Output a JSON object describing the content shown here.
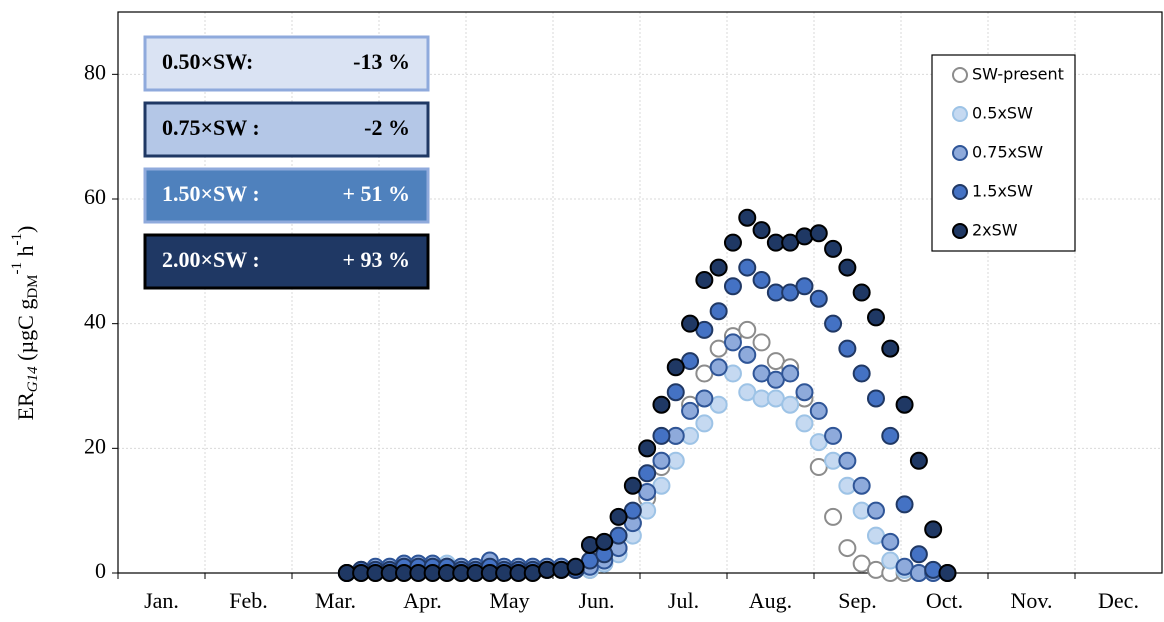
{
  "chart_data": {
    "type": "scatter",
    "y_label": [
      "ER",
      "G14",
      " (µgC g",
      "DM",
      "-1",
      " h",
      "-1",
      ")"
    ],
    "categories": [
      "Jan.",
      "Feb.",
      "Mar.",
      "Apr.",
      "May",
      "Jun.",
      "Jul.",
      "Aug.",
      "Sep.",
      "Oct.",
      "Nov.",
      "Dec."
    ],
    "xlim": [
      0,
      365
    ],
    "ylim": [
      0,
      90
    ],
    "yticks": [
      0,
      20,
      40,
      60,
      80
    ],
    "grid": true,
    "legend": "top-right",
    "x": [
      60,
      65,
      70,
      75,
      80,
      85,
      90,
      95,
      100,
      105,
      110,
      115,
      120,
      125,
      130,
      135,
      140,
      145,
      150,
      155,
      160,
      165,
      170,
      175,
      180,
      185,
      190,
      195,
      200,
      205,
      210,
      215,
      220,
      225,
      230,
      235,
      240,
      245,
      250,
      255,
      260,
      265,
      270,
      275,
      280,
      285,
      290
    ],
    "series": [
      {
        "name": "SW-present",
        "color": "#ffffff",
        "stroke": "#8c8c8c",
        "values": [
          null,
          null,
          null,
          null,
          0,
          0,
          0,
          0.5,
          0.5,
          0.5,
          0.5,
          0.5,
          0.5,
          0.5,
          0.5,
          0.5,
          0.5,
          0.5,
          0.5,
          0.5,
          0.5,
          0.5,
          1.5,
          4,
          8,
          12,
          17,
          22,
          27,
          32,
          36,
          38,
          39,
          37,
          34,
          33,
          28,
          17,
          9,
          4,
          1.5,
          0.5,
          0,
          0,
          0,
          null,
          null
        ]
      },
      {
        "name": "0.5xSW",
        "color": "#c5d9f1",
        "stroke": "#9dc3e6",
        "values": [
          null,
          null,
          null,
          null,
          0,
          0.5,
          0.5,
          1,
          1.5,
          1.5,
          1.5,
          1.5,
          1,
          1,
          1.5,
          1,
          1,
          1,
          1,
          1,
          0.5,
          0.5,
          1.5,
          3,
          6,
          10,
          14,
          18,
          22,
          24,
          27,
          32,
          29,
          28,
          28,
          27,
          24,
          21,
          18,
          14,
          10,
          6,
          2,
          0.5,
          0,
          null,
          null
        ]
      },
      {
        "name": "0.75xSW",
        "color": "#8eaadb",
        "stroke": "#2f5597",
        "values": [
          null,
          null,
          null,
          null,
          0,
          0.5,
          1,
          1,
          1.5,
          1.5,
          1.5,
          1,
          1,
          1,
          2,
          1,
          1,
          1,
          1,
          1,
          0.5,
          1,
          2,
          4,
          8,
          13,
          18,
          22,
          26,
          28,
          33,
          37,
          35,
          32,
          31,
          32,
          29,
          26,
          22,
          18,
          14,
          10,
          5,
          1,
          0,
          0,
          null
        ]
      },
      {
        "name": "1.5xSW",
        "color": "#4472c4",
        "stroke": "#203864",
        "values": [
          null,
          null,
          null,
          null,
          0,
          0.5,
          0.5,
          0.5,
          1,
          1,
          1,
          1,
          0.5,
          0.5,
          1,
          0.5,
          0.5,
          0.5,
          0.5,
          0.5,
          0.5,
          2,
          3,
          6,
          10,
          16,
          22,
          29,
          34,
          39,
          42,
          46,
          49,
          47,
          45,
          45,
          46,
          44,
          40,
          36,
          32,
          28,
          22,
          11,
          3,
          0.5,
          0
        ]
      },
      {
        "name": "2xSW",
        "color": "#1f3864",
        "stroke": "#000000",
        "values": [
          null,
          null,
          null,
          null,
          0,
          0,
          0,
          0,
          0,
          0,
          0,
          0,
          0,
          0,
          0,
          0,
          0,
          0,
          0.5,
          0.5,
          1,
          4.5,
          5,
          9,
          14,
          20,
          27,
          33,
          40,
          47,
          49,
          53,
          57,
          55,
          53,
          53,
          54,
          54.5,
          52,
          49,
          45,
          41,
          36,
          27,
          18,
          7,
          0
        ]
      }
    ],
    "annotations": [
      {
        "label": "0.50×SW:",
        "value": "-13 %",
        "color": "#dae3f3",
        "border": "#8faadc",
        "text_color": "#000000"
      },
      {
        "label": "0.75×SW :",
        "value": "-2 %",
        "color": "#b4c7e7",
        "border": "#1f3864",
        "text_color": "#000000"
      },
      {
        "label": "1.50×SW :",
        "value": "+ 51 %",
        "color": "#4f81bd",
        "border": "#8faadc",
        "text_color": "#ffffff"
      },
      {
        "label": "2.00×SW :",
        "value": "+ 93 %",
        "color": "#1f3864",
        "border": "#000000",
        "text_color": "#ffffff"
      }
    ]
  }
}
